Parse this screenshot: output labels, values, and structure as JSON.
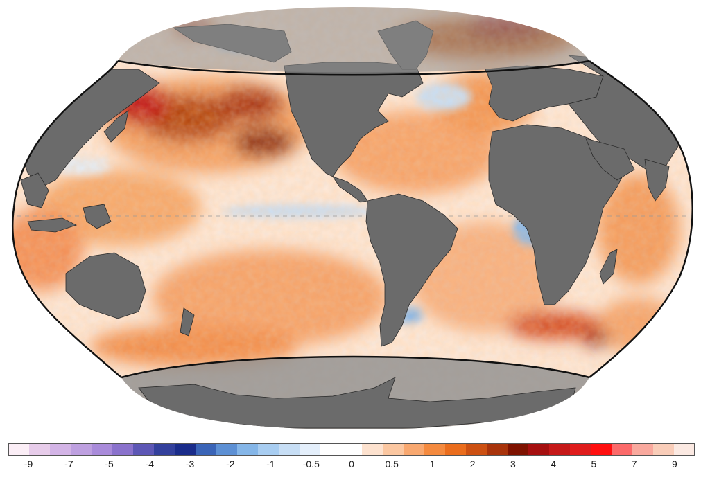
{
  "map": {
    "projection": "winkel-tripel-like",
    "land_color": "#6b6b6b",
    "polar_overlay_color": "#9a9a9a",
    "border_color": "#2a2a2a"
  },
  "colorbar": {
    "bins": [
      "#fbeef6",
      "#e7ccea",
      "#d3b4e6",
      "#bea0e0",
      "#a98bda",
      "#8a72cc",
      "#5d57b5",
      "#33409c",
      "#1a2c8a",
      "#3a64b7",
      "#5d90d4",
      "#85b6e8",
      "#a8cdf1",
      "#c7def5",
      "#e4effb",
      "#ffffff",
      "#ffffff",
      "#fde2cf",
      "#fbc7a1",
      "#f8a870",
      "#f48a3f",
      "#ea6d1d",
      "#cc5012",
      "#a8330b",
      "#7e1200",
      "#a50f0f",
      "#c51818",
      "#df1c1c",
      "#ff0f0f",
      "#fb6a6a",
      "#f9a99e",
      "#f9cdb9",
      "#fbe9e2"
    ],
    "tick_labels": [
      "-9",
      "-7",
      "-5",
      "-4",
      "-3",
      "-2",
      "-1",
      "-0.5",
      "0",
      "0.5",
      "1",
      "2",
      "3",
      "4",
      "5",
      "7",
      "9"
    ]
  }
}
